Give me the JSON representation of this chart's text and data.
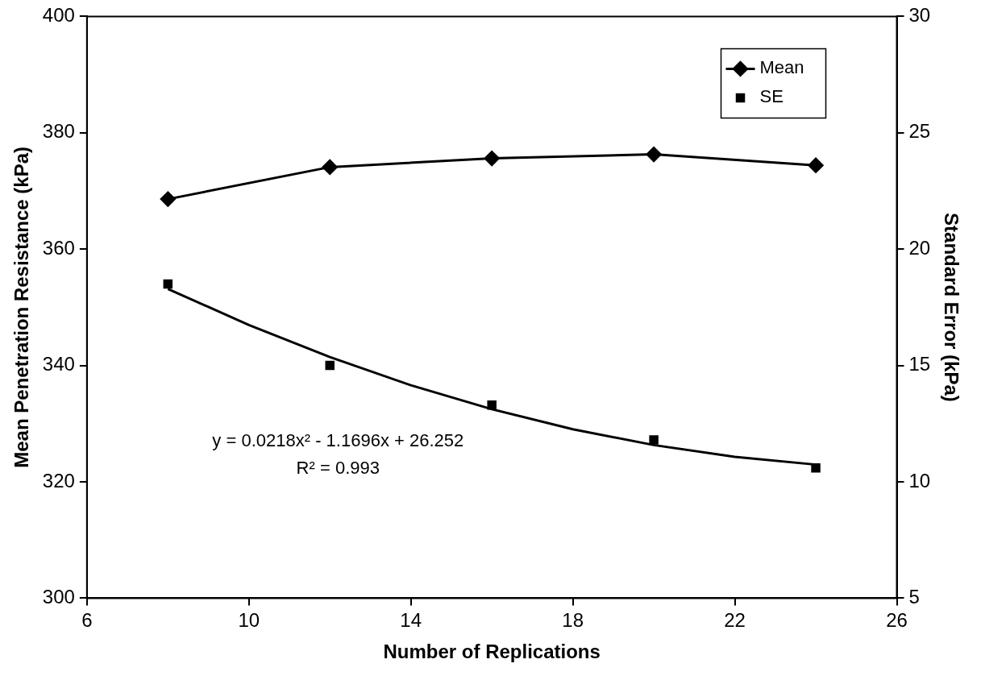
{
  "chart_data": {
    "type": "line",
    "xlabel": "Number of Replications",
    "ylabel": "Mean Penetration Resistance (kPa)",
    "y2label": "Standard Error (kPa)",
    "x": [
      8,
      12,
      16,
      20,
      24
    ],
    "series": [
      {
        "name": "Mean",
        "type": "line",
        "color": "#000000",
        "marker": "diamond",
        "values": [
          368.6,
          374.1,
          375.6,
          376.3,
          374.4
        ]
      },
      {
        "name": "SE",
        "type": "scatter",
        "color": "#000000",
        "marker": "square",
        "axis": "y2",
        "values": [
          18.5,
          15.0,
          13.3,
          11.8,
          10.6
        ]
      },
      {
        "type": "line",
        "color": "#000000",
        "marker": "none",
        "axis": "y2",
        "x": [
          8,
          10,
          12,
          14,
          16,
          18,
          20,
          22,
          24
        ],
        "values": [
          18.29,
          16.74,
          15.36,
          14.15,
          13.12,
          12.26,
          11.58,
          11.07,
          10.74
        ]
      }
    ],
    "xlim": [
      6,
      26
    ],
    "xticks": [
      6,
      10,
      14,
      18,
      22,
      26
    ],
    "ylim": [
      300,
      400
    ],
    "yticks": [
      300,
      320,
      340,
      360,
      380,
      400
    ],
    "y2lim": [
      5,
      30
    ],
    "y2ticks": [
      5,
      10,
      15,
      20,
      25,
      30
    ],
    "annotations": [
      "y = 0.0218x² - 1.1696x + 26.252",
      "R² = 0.993"
    ],
    "grid": false,
    "legend": "top right"
  }
}
